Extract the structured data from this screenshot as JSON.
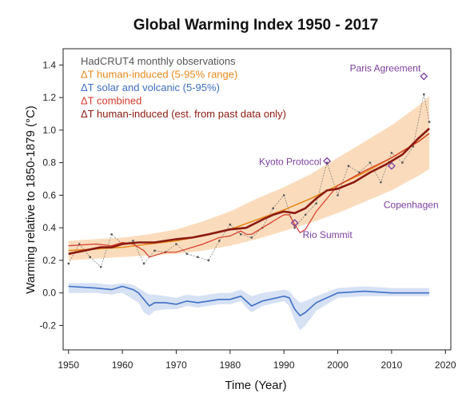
{
  "chart_data": {
    "type": "line",
    "title": "Global Warming Index 1950 - 2017",
    "xlabel": "Time (Year)",
    "ylabel": "Warming relative to 1850-1879 (°C)",
    "xlim": [
      1949,
      2021
    ],
    "ylim": [
      -0.35,
      1.5
    ],
    "x_ticks": [
      1950,
      1960,
      1970,
      1980,
      1990,
      2000,
      2010,
      2020
    ],
    "y_ticks": [
      -0.2,
      0.0,
      0.2,
      0.4,
      0.6,
      0.8,
      1.0,
      1.2,
      1.4
    ],
    "grid": false,
    "legend_position": "top-left",
    "legend": [
      {
        "label": "HadCRUT4 monthly observations",
        "color": "#555555"
      },
      {
        "label": "ΔT human-induced (5-95% range)",
        "color": "#e8891c"
      },
      {
        "label": "ΔT solar and volcanic (5-95%)",
        "color": "#3e6fc4"
      },
      {
        "label": "ΔT combined",
        "color": "#d43a2a"
      },
      {
        "label": "ΔT human-induced (est. from past data only)",
        "color": "#8b1a10"
      }
    ],
    "series": [
      {
        "name": "ΔT human-induced (5-95% range)",
        "color": "#e8891c",
        "x": [
          1950,
          1955,
          1960,
          1965,
          1970,
          1975,
          1980,
          1985,
          1990,
          1995,
          2000,
          2005,
          2010,
          2015,
          2017
        ],
        "y": [
          0.26,
          0.27,
          0.28,
          0.3,
          0.32,
          0.35,
          0.39,
          0.45,
          0.51,
          0.58,
          0.66,
          0.74,
          0.83,
          0.93,
          0.98
        ],
        "lower": [
          0.2,
          0.21,
          0.22,
          0.23,
          0.24,
          0.26,
          0.29,
          0.33,
          0.38,
          0.43,
          0.49,
          0.56,
          0.63,
          0.72,
          0.76
        ],
        "upper": [
          0.32,
          0.33,
          0.34,
          0.36,
          0.39,
          0.44,
          0.5,
          0.58,
          0.65,
          0.73,
          0.83,
          0.93,
          1.03,
          1.15,
          1.21
        ]
      },
      {
        "name": "ΔT solar and volcanic (5-95%)",
        "color": "#3e6fc4",
        "x": [
          1950,
          1955,
          1958,
          1960,
          1962,
          1963,
          1964,
          1965,
          1966,
          1968,
          1970,
          1972,
          1974,
          1976,
          1978,
          1980,
          1982,
          1983,
          1984,
          1986,
          1990,
          1991,
          1992,
          1993,
          1994,
          1996,
          2000,
          2005,
          2010,
          2015,
          2017
        ],
        "y": [
          0.04,
          0.03,
          0.02,
          0.04,
          0.02,
          0.0,
          -0.04,
          -0.08,
          -0.06,
          -0.06,
          -0.07,
          -0.05,
          -0.06,
          -0.05,
          -0.04,
          -0.04,
          -0.02,
          -0.05,
          -0.08,
          -0.05,
          -0.02,
          -0.03,
          -0.1,
          -0.14,
          -0.12,
          -0.06,
          0.0,
          0.01,
          0.0,
          0.0,
          0.0
        ],
        "lower": [
          0.0,
          0.0,
          -0.01,
          0.0,
          -0.04,
          -0.06,
          -0.12,
          -0.14,
          -0.11,
          -0.1,
          -0.1,
          -0.08,
          -0.09,
          -0.08,
          -0.07,
          -0.07,
          -0.05,
          -0.09,
          -0.12,
          -0.08,
          -0.05,
          -0.08,
          -0.17,
          -0.23,
          -0.2,
          -0.11,
          -0.03,
          -0.02,
          -0.02,
          -0.02,
          -0.02
        ],
        "upper": [
          0.06,
          0.06,
          0.05,
          0.06,
          0.05,
          0.03,
          0.01,
          -0.01,
          -0.01,
          -0.02,
          -0.03,
          -0.01,
          -0.02,
          -0.01,
          0.0,
          0.0,
          0.02,
          0.0,
          -0.02,
          0.0,
          0.02,
          0.01,
          -0.03,
          -0.06,
          -0.05,
          -0.02,
          0.03,
          0.04,
          0.03,
          0.03,
          0.03
        ]
      },
      {
        "name": "ΔT combined",
        "color": "#d43a2a",
        "x": [
          1950,
          1955,
          1958,
          1960,
          1962,
          1964,
          1965,
          1966,
          1968,
          1970,
          1972,
          1975,
          1978,
          1980,
          1982,
          1983,
          1984,
          1986,
          1990,
          1991,
          1992,
          1993,
          1994,
          1996,
          2000,
          2005,
          2010,
          2015,
          2017
        ],
        "y": [
          0.29,
          0.3,
          0.29,
          0.31,
          0.3,
          0.26,
          0.22,
          0.23,
          0.25,
          0.25,
          0.27,
          0.3,
          0.34,
          0.35,
          0.38,
          0.36,
          0.36,
          0.4,
          0.48,
          0.48,
          0.42,
          0.37,
          0.39,
          0.5,
          0.66,
          0.75,
          0.83,
          0.93,
          0.98
        ]
      },
      {
        "name": "ΔT human-induced (est. from past data only)",
        "color": "#8b1a10",
        "x": [
          1950,
          1953,
          1956,
          1958,
          1960,
          1963,
          1966,
          1970,
          1973,
          1976,
          1980,
          1983,
          1986,
          1988,
          1990,
          1992,
          1994,
          1996,
          1998,
          2000,
          2003,
          2006,
          2009,
          2012,
          2015,
          2017
        ],
        "y": [
          0.24,
          0.26,
          0.28,
          0.28,
          0.3,
          0.31,
          0.31,
          0.33,
          0.34,
          0.36,
          0.39,
          0.4,
          0.45,
          0.48,
          0.5,
          0.49,
          0.52,
          0.58,
          0.63,
          0.64,
          0.68,
          0.74,
          0.79,
          0.85,
          0.95,
          1.01
        ]
      },
      {
        "name": "HadCRUT4 monthly observations",
        "color": "#555555",
        "x": [
          1950,
          1952,
          1954,
          1956,
          1958,
          1960,
          1962,
          1964,
          1966,
          1968,
          1970,
          1972,
          1974,
          1976,
          1978,
          1980,
          1982,
          1984,
          1986,
          1988,
          1990,
          1992,
          1994,
          1996,
          1998,
          2000,
          2002,
          2004,
          2006,
          2008,
          2010,
          2012,
          2014,
          2016,
          2017
        ],
        "y": [
          0.18,
          0.3,
          0.22,
          0.16,
          0.36,
          0.3,
          0.32,
          0.18,
          0.26,
          0.25,
          0.3,
          0.24,
          0.22,
          0.2,
          0.32,
          0.42,
          0.36,
          0.34,
          0.4,
          0.52,
          0.6,
          0.4,
          0.48,
          0.55,
          0.8,
          0.6,
          0.78,
          0.74,
          0.8,
          0.68,
          0.86,
          0.8,
          0.9,
          1.22,
          1.05
        ]
      }
    ],
    "annotations": [
      {
        "text": "Paris Agreement",
        "x": 2016,
        "y": 1.33
      },
      {
        "text": "Kyoto Protocol",
        "x": 1998,
        "y": 0.81
      },
      {
        "text": "Copenhagen",
        "x": 2010,
        "y": 0.78
      },
      {
        "text": "Rio Summit",
        "x": 1992,
        "y": 0.43
      }
    ]
  }
}
